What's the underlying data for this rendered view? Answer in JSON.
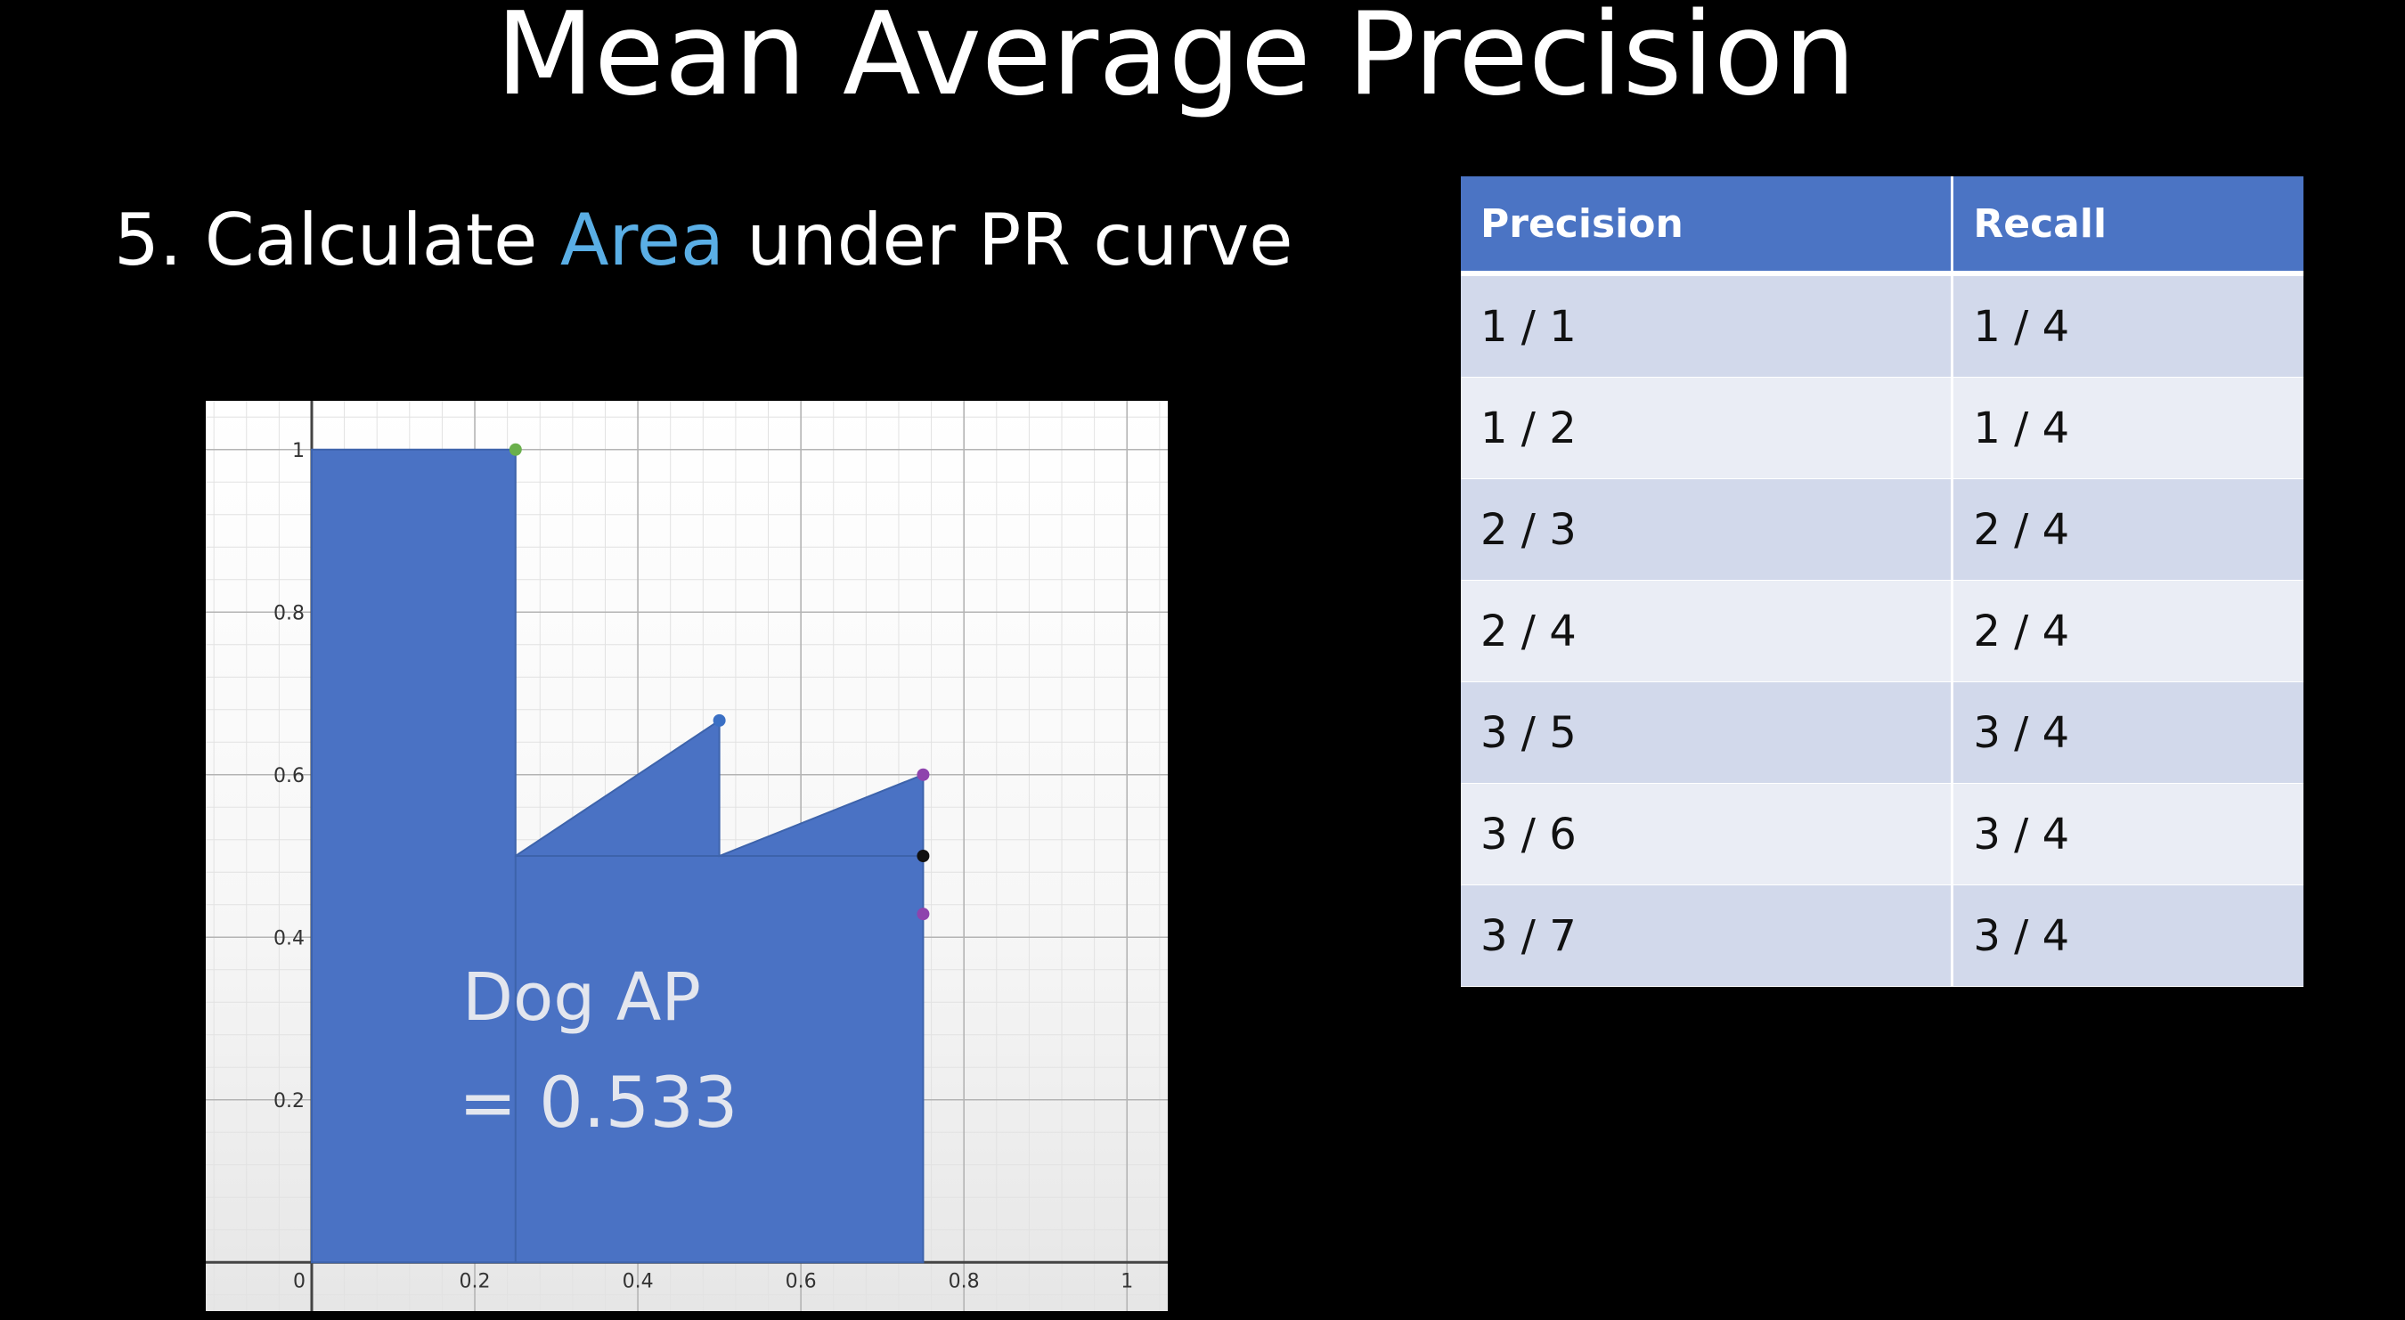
{
  "slide": {
    "title": "Mean Average Precision",
    "subtitle_prefix": "5. Calculate ",
    "subtitle_highlight": "Area",
    "subtitle_suffix": " under PR curve",
    "highlight_color": "#5aaee5"
  },
  "chart_data": {
    "type": "area",
    "x": [
      0,
      0.25,
      0.25,
      0.5,
      0.5,
      0.75,
      0.75
    ],
    "y": [
      1,
      1,
      0.5,
      0.6667,
      0.5,
      0.6,
      0
    ],
    "points": [
      {
        "x": 0.25,
        "y": 1,
        "color": "#6ab04c"
      },
      {
        "x": 0.5,
        "y": 0.6667,
        "color": "#3a6fc4"
      },
      {
        "x": 0.75,
        "y": 0.6,
        "color": "#8e44ad"
      },
      {
        "x": 0.75,
        "y": 0.5,
        "color": "#111111"
      },
      {
        "x": 0.75,
        "y": 0.4286,
        "color": "#8e44ad"
      }
    ],
    "xlim": [
      -0.13,
      1.05
    ],
    "ylim": [
      -0.06,
      1.06
    ],
    "xticks": [
      0,
      0.2,
      0.4,
      0.6,
      0.8,
      1
    ],
    "xtick_labels": [
      "0",
      "0.2",
      "0.4",
      "0.6",
      "0.8",
      "1"
    ],
    "yticks": [
      1,
      0.8,
      0.6,
      0.4,
      0.2
    ],
    "ytick_labels": [
      "1",
      "0.8",
      "0.6",
      "0.4",
      "0.2"
    ],
    "grid": true,
    "fill_color": "#4a72c4",
    "annotation_line1": "Dog AP",
    "annotation_line2": "= 0.533"
  },
  "table": {
    "headers": [
      "Precision",
      "Recall"
    ],
    "rows": [
      [
        "1 / 1",
        "1 / 4"
      ],
      [
        "1 / 2",
        "1 / 4"
      ],
      [
        "2 / 3",
        "2 / 4"
      ],
      [
        "2 / 4",
        "2 / 4"
      ],
      [
        "3 / 5",
        "3 / 4"
      ],
      [
        "3 / 6",
        "3 / 4"
      ],
      [
        "3 / 7",
        "3 / 4"
      ]
    ]
  }
}
